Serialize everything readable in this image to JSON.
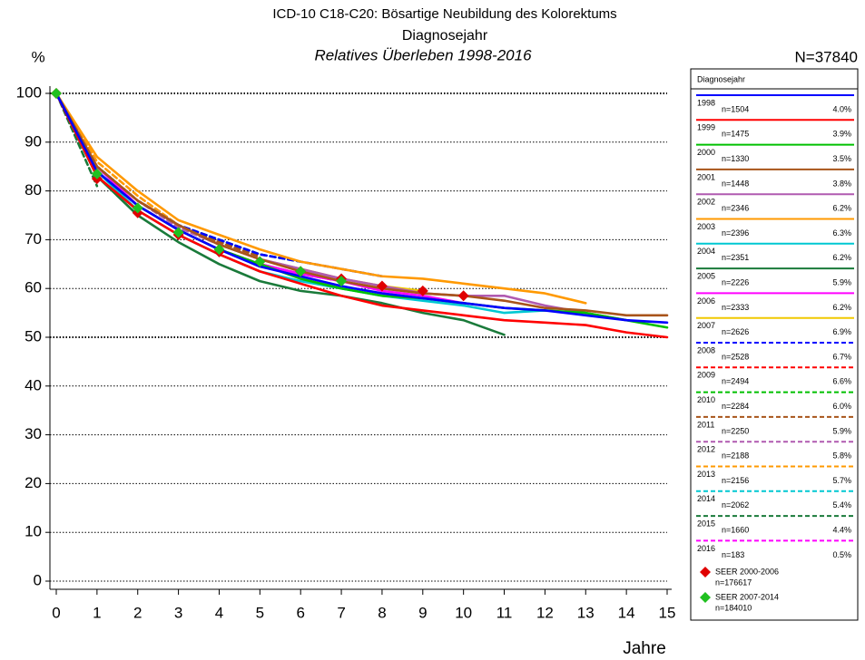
{
  "chart_data": {
    "type": "line",
    "title": "ICD-10 C18-C20: Bösartige Neubildung des Kolorektums",
    "subtitle": "Diagnosejahr",
    "subtitle2": "Relatives Überleben 1998-2016",
    "ylabel": "%",
    "xlabel": "Jahre",
    "total": "N=37840",
    "legend_title": "Diagnosejahr",
    "x": [
      0,
      1,
      2,
      3,
      4,
      5,
      6,
      7,
      8,
      9,
      10,
      11,
      12,
      13,
      14,
      15
    ],
    "xlim": [
      0,
      15
    ],
    "xticks": [
      0,
      1,
      2,
      3,
      4,
      5,
      6,
      7,
      8,
      9,
      10,
      11,
      12,
      13,
      14,
      15
    ],
    "ylim": [
      0,
      100
    ],
    "yticks": [
      0,
      10,
      20,
      30,
      40,
      50,
      60,
      70,
      80,
      90,
      100
    ],
    "grid": true,
    "series": [
      {
        "name": "1998",
        "n": "n=1504",
        "share": "4.0%",
        "color": "#0000ff",
        "dashed": false,
        "values": [
          100,
          84,
          77,
          72,
          68,
          64.5,
          62.5,
          60.5,
          59,
          58,
          57,
          56,
          55.5,
          54.5,
          53.5,
          53
        ]
      },
      {
        "name": "1999",
        "n": "n=1475",
        "share": "3.9%",
        "color": "#ff0000",
        "dashed": false,
        "values": [
          100,
          83,
          76,
          71,
          67,
          63.5,
          61,
          58.5,
          56.5,
          55.5,
          54.5,
          53.5,
          53,
          52.5,
          51,
          50
        ]
      },
      {
        "name": "2000",
        "n": "n=1330",
        "share": "3.5%",
        "color": "#00c000",
        "dashed": false,
        "values": [
          100,
          84,
          77,
          72,
          68,
          65,
          62,
          60,
          58.5,
          58,
          57,
          56,
          55.5,
          55,
          53.5,
          52
        ]
      },
      {
        "name": "2001",
        "n": "n=1448",
        "share": "3.8%",
        "color": "#a8541a",
        "dashed": false,
        "values": [
          100,
          85,
          78,
          73,
          69,
          66,
          63.5,
          61.5,
          60,
          59,
          58.5,
          57.5,
          56,
          55.5,
          54.5,
          54.5
        ]
      },
      {
        "name": "2002",
        "n": "n=2346",
        "share": "6.2%",
        "color": "#b05ab0",
        "dashed": false,
        "values": [
          100,
          85,
          78,
          73,
          69,
          66,
          64,
          62,
          60.5,
          59,
          58.5,
          58.5,
          56.5,
          55,
          53.5,
          null
        ]
      },
      {
        "name": "2003",
        "n": "n=2396",
        "share": "6.3%",
        "color": "#ff9900",
        "dashed": false,
        "values": [
          100,
          87,
          80,
          74,
          71,
          68,
          65.5,
          64,
          62.5,
          62,
          61,
          60,
          59,
          57,
          null,
          null
        ]
      },
      {
        "name": "2004",
        "n": "n=2351",
        "share": "6.2%",
        "color": "#00c8d2",
        "dashed": false,
        "values": [
          100,
          84,
          76,
          71,
          67,
          63.5,
          61.5,
          60,
          58.5,
          57.5,
          56.5,
          55,
          55.5,
          null,
          null,
          null
        ]
      },
      {
        "name": "2005",
        "n": "n=2226",
        "share": "5.9%",
        "color": "#1a7a3a",
        "dashed": false,
        "values": [
          100,
          83,
          75,
          69.5,
          65,
          61.5,
          59.5,
          58.5,
          57,
          55,
          53.5,
          50.5,
          null,
          null,
          null,
          null
        ]
      },
      {
        "name": "2006",
        "n": "n=2333",
        "share": "6.2%",
        "color": "#ff00ff",
        "dashed": false,
        "values": [
          100,
          85,
          77,
          72,
          68,
          65,
          63,
          61.5,
          59.5,
          58.5,
          57,
          null,
          null,
          null,
          null,
          null
        ]
      },
      {
        "name": "2007",
        "n": "n=2626",
        "share": "6.9%",
        "color": "#f0c800",
        "dashed": false,
        "values": [
          100,
          85,
          78,
          73,
          69,
          66,
          64,
          62,
          60.5,
          59.5,
          null,
          null,
          null,
          null,
          null,
          null
        ]
      },
      {
        "name": "2008",
        "n": "n=2528",
        "share": "6.7%",
        "color": "#0000ff",
        "dashed": true,
        "values": [
          100,
          85,
          78,
          73,
          70,
          67,
          65.5,
          64,
          62.5,
          null,
          null,
          null,
          null,
          null,
          null,
          null
        ]
      },
      {
        "name": "2009",
        "n": "n=2494",
        "share": "6.6%",
        "color": "#ff0000",
        "dashed": true,
        "values": [
          100,
          84,
          77,
          72,
          68,
          65,
          63,
          61.5,
          null,
          null,
          null,
          null,
          null,
          null,
          null,
          null
        ]
      },
      {
        "name": "2010",
        "n": "n=2284",
        "share": "6.0%",
        "color": "#00c000",
        "dashed": true,
        "values": [
          100,
          85,
          78,
          73,
          70,
          67,
          65.5,
          null,
          null,
          null,
          null,
          null,
          null,
          null,
          null,
          null
        ]
      },
      {
        "name": "2011",
        "n": "n=2250",
        "share": "5.9%",
        "color": "#a8541a",
        "dashed": true,
        "values": [
          100,
          85,
          78,
          73,
          69.5,
          66.5,
          null,
          null,
          null,
          null,
          null,
          null,
          null,
          null,
          null,
          null
        ]
      },
      {
        "name": "2012",
        "n": "n=2188",
        "share": "5.8%",
        "color": "#b05ab0",
        "dashed": true,
        "values": [
          100,
          85,
          78,
          72.5,
          69,
          null,
          null,
          null,
          null,
          null,
          null,
          null,
          null,
          null,
          null,
          null
        ]
      },
      {
        "name": "2013",
        "n": "n=2156",
        "share": "5.7%",
        "color": "#ff9900",
        "dashed": true,
        "values": [
          100,
          86,
          79,
          73,
          null,
          null,
          null,
          null,
          null,
          null,
          null,
          null,
          null,
          null,
          null,
          null
        ]
      },
      {
        "name": "2014",
        "n": "n=2062",
        "share": "5.4%",
        "color": "#00c8d2",
        "dashed": true,
        "values": [
          100,
          83,
          76,
          null,
          null,
          null,
          null,
          null,
          null,
          null,
          null,
          null,
          null,
          null,
          null,
          null
        ]
      },
      {
        "name": "2015",
        "n": "n=1660",
        "share": "4.4%",
        "color": "#1a7a3a",
        "dashed": true,
        "values": [
          100,
          81,
          null,
          null,
          null,
          null,
          null,
          null,
          null,
          null,
          null,
          null,
          null,
          null,
          null,
          null
        ]
      },
      {
        "name": "2016",
        "n": "n=183",
        "share": "0.5%",
        "color": "#ff00ff",
        "dashed": true,
        "values": [
          100,
          null,
          null,
          null,
          null,
          null,
          null,
          null,
          null,
          null,
          null,
          null,
          null,
          null,
          null,
          null
        ]
      }
    ],
    "markers": [
      {
        "name": "SEER 2000-2006",
        "n": "n=176617",
        "color": "#e00000",
        "values": [
          100,
          82.5,
          75.5,
          71,
          67.5,
          65.5,
          63.5,
          62,
          60.5,
          59.5,
          58.5,
          null,
          null,
          null,
          null,
          null
        ]
      },
      {
        "name": "SEER 2007-2014",
        "n": "n=184010",
        "color": "#20c020",
        "values": [
          100,
          83.5,
          76.5,
          71.5,
          68,
          65.5,
          63.5,
          61.5,
          null,
          null,
          null,
          null,
          null,
          null,
          null,
          null
        ]
      }
    ]
  }
}
